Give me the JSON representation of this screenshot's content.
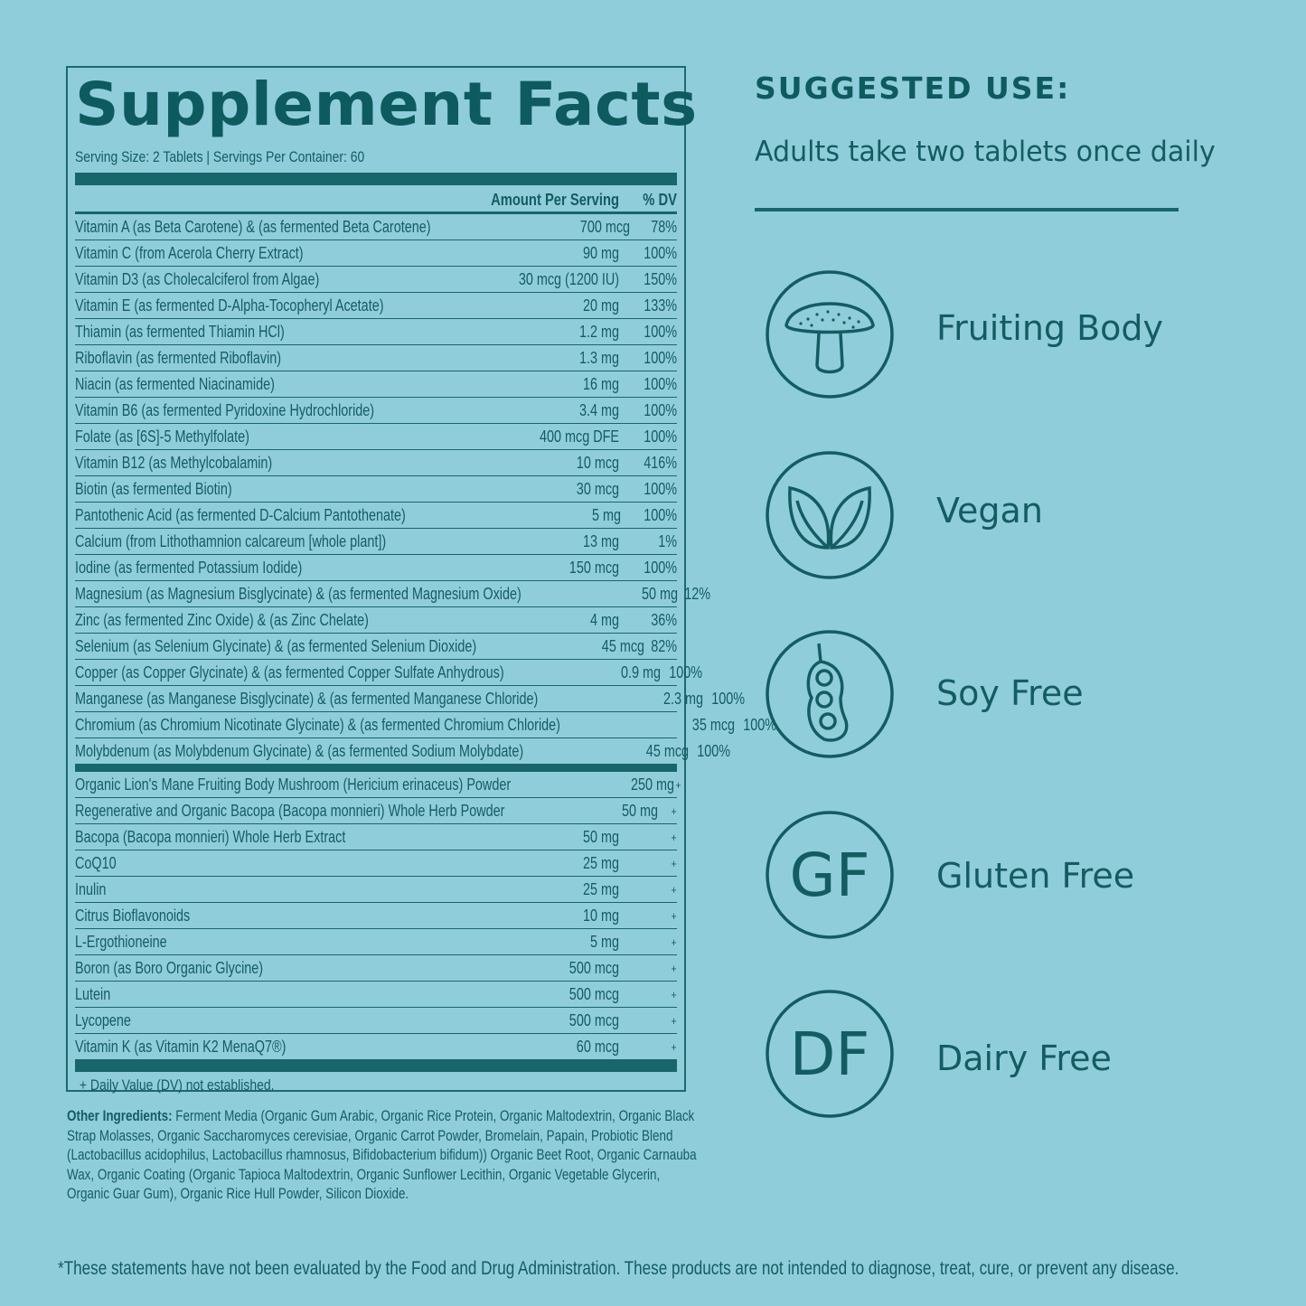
{
  "facts": {
    "title": "Supplement Facts",
    "serving": "Serving Size: 2 Tablets  |  Servings Per Container: 60",
    "col_amount": "Amount Per Serving",
    "col_dv": "% DV",
    "vitamins": [
      {
        "name": "Vitamin A (as Beta Carotene) & (as fermented Beta Carotene)",
        "amount": "700 mcg",
        "dv": "78%"
      },
      {
        "name": "Vitamin C (from Acerola Cherry Extract)",
        "amount": "90 mg",
        "dv": "100%"
      },
      {
        "name": "Vitamin D3 (as Cholecalciferol from Algae)",
        "amount": "30 mcg (1200 IU)",
        "dv": "150%"
      },
      {
        "name": "Vitamin E (as fermented D-Alpha-Tocopheryl Acetate)",
        "amount": "20 mg",
        "dv": "133%"
      },
      {
        "name": "Thiamin (as fermented Thiamin HCl)",
        "amount": "1.2 mg",
        "dv": "100%"
      },
      {
        "name": "Riboflavin (as fermented Riboflavin)",
        "amount": "1.3 mg",
        "dv": "100%"
      },
      {
        "name": "Niacin (as fermented Niacinamide)",
        "amount": "16 mg",
        "dv": "100%"
      },
      {
        "name": "Vitamin B6 (as fermented Pyridoxine Hydrochloride)",
        "amount": "3.4 mg",
        "dv": "100%"
      },
      {
        "name": "Folate (as [6S]-5 Methylfolate)",
        "amount": "400 mcg DFE",
        "dv": "100%"
      },
      {
        "name": "Vitamin B12 (as Methylcobalamin)",
        "amount": "10 mcg",
        "dv": "416%"
      },
      {
        "name": "Biotin (as fermented Biotin)",
        "amount": "30 mcg",
        "dv": "100%"
      },
      {
        "name": "Pantothenic Acid (as fermented D-Calcium Pantothenate)",
        "amount": "5 mg",
        "dv": "100%"
      },
      {
        "name": "Calcium (from Lithothamnion calcareum [whole plant])",
        "amount": "13 mg",
        "dv": "1%"
      },
      {
        "name": "Iodine (as fermented Potassium Iodide)",
        "amount": "150 mcg",
        "dv": "100%"
      },
      {
        "name": "Magnesium (as Magnesium Bisglycinate) &  (as fermented Magnesium Oxide)",
        "amount": "50 mg",
        "dv": "12%"
      },
      {
        "name": "Zinc (as fermented Zinc Oxide) & (as Zinc Chelate)",
        "amount": "4 mg",
        "dv": "36%"
      },
      {
        "name": "Selenium (as Selenium Glycinate) &  (as fermented Selenium Dioxide)",
        "amount": "45 mcg",
        "dv": "82%"
      },
      {
        "name": "Copper (as Copper Glycinate) & (as fermented Copper Sulfate Anhydrous)",
        "amount": "0.9 mg",
        "dv": "100%"
      },
      {
        "name": "Manganese (as Manganese Bisglycinate) & (as fermented Manganese Chloride)",
        "amount": "2.3 mg",
        "dv": "100%"
      },
      {
        "name": "Chromium (as Chromium Nicotinate Glycinate) & (as fermented Chromium Chloride)",
        "amount": "35 mcg",
        "dv": "100%"
      },
      {
        "name": "Molybdenum (as Molybdenum Glycinate) & (as fermented Sodium Molybdate)",
        "amount": "45 mcg",
        "dv": "100%"
      }
    ],
    "others": [
      {
        "name": "Organic Lion's Mane Fruiting Body Mushroom (Hericium erinaceus) Powder",
        "amount": "250 mg",
        "dv": "+"
      },
      {
        "name": "Regenerative and Organic Bacopa (Bacopa monnieri) Whole Herb Powder",
        "amount": "50 mg",
        "dv": "+"
      },
      {
        "name": "Bacopa (Bacopa monnieri) Whole Herb Extract",
        "amount": "50 mg",
        "dv": "+"
      },
      {
        "name": "CoQ10",
        "amount": "25 mg",
        "dv": "+"
      },
      {
        "name": "Inulin",
        "amount": "25 mg",
        "dv": "+"
      },
      {
        "name": "Citrus Bioflavonoids",
        "amount": "10 mg",
        "dv": "+"
      },
      {
        "name": "L-Ergothioneine",
        "amount": "5 mg",
        "dv": "+"
      },
      {
        "name": "Boron (as Boro Organic Glycine)",
        "amount": "500 mcg",
        "dv": "+"
      },
      {
        "name": "Lutein",
        "amount": "500 mcg",
        "dv": "+"
      },
      {
        "name": "Lycopene",
        "amount": "500 mcg",
        "dv": "+"
      },
      {
        "name": "Vitamin K (as Vitamin K2 MenaQ7®)",
        "amount": "60 mcg",
        "dv": "+"
      }
    ],
    "dv_note": "+ Daily Value (DV) not established."
  },
  "other_ingredients": {
    "label": "Other Ingredients:",
    "text": "Ferment Media (Organic Gum Arabic, Organic Rice Protein, Organic Maltodextrin, Organic Black Strap Molasses, Organic Saccharomyces cerevisiae, Organic Carrot Powder, Bromelain, Papain, Probiotic Blend (Lactobacillus acidophilus, Lactobacillus rhamnosus, Bifidobacterium bifidum)) Organic Beet Root, Organic Carnauba Wax, Organic Coating (Organic Tapioca Maltodextrin, Organic Sunflower Lecithin, Organic Vegetable Glycerin, Organic Guar Gum), Organic Rice Hull Powder, Silicon Dioxide."
  },
  "disclaimer": "*These statements have not been evaluated by the Food and Drug Administration. These products are not intended to diagnose, treat, cure, or prevent any disease.",
  "suggested_use": {
    "heading": "SUGGESTED USE:",
    "text": "Adults take two tablets once daily"
  },
  "badges": [
    {
      "label": "Fruiting Body",
      "icon": "mushroom-icon"
    },
    {
      "label": "Vegan",
      "icon": "leaves-icon"
    },
    {
      "label": "Soy Free",
      "icon": "soybean-icon"
    },
    {
      "label": "Gluten Free",
      "icon": "gf-icon",
      "glyph": "GF"
    },
    {
      "label": "Dairy Free",
      "icon": "df-icon",
      "glyph": "DF"
    }
  ],
  "colors": {
    "background": "#90cddb",
    "ink": "#135d62"
  }
}
